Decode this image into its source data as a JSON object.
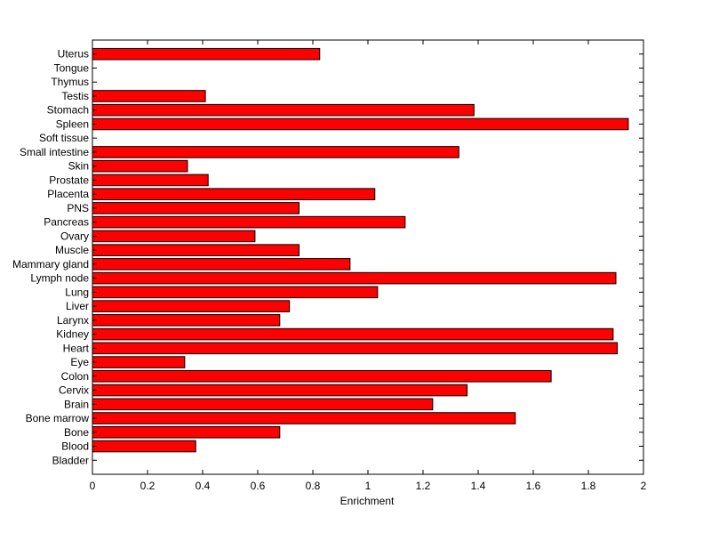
{
  "chart_data": {
    "type": "bar",
    "orientation": "horizontal",
    "title": "",
    "xlabel": "Enrichment",
    "ylabel": "",
    "xlim": [
      0,
      2
    ],
    "xticks": [
      "0",
      "0.2",
      "0.4",
      "0.6",
      "0.8",
      "1",
      "1.2",
      "1.4",
      "1.6",
      "1.8",
      "2"
    ],
    "grid": false,
    "bar_color": "#ff0000",
    "edge_color": "#000000",
    "categories": [
      "Bladder",
      "Blood",
      "Bone",
      "Bone marrow",
      "Brain",
      "Cervix",
      "Colon",
      "Eye",
      "Heart",
      "Kidney",
      "Larynx",
      "Liver",
      "Lung",
      "Lymph node",
      "Mammary gland",
      "Muscle",
      "Ovary",
      "Pancreas",
      "PNS",
      "Placenta",
      "Prostate",
      "Skin",
      "Small intestine",
      "Soft tissue",
      "Spleen",
      "Stomach",
      "Testis",
      "Thymus",
      "Tongue",
      "Uterus"
    ],
    "values": [
      0,
      0.375,
      0.68,
      1.535,
      1.235,
      1.36,
      1.665,
      0.335,
      1.905,
      1.89,
      0.68,
      0.715,
      1.035,
      1.9,
      0.935,
      0.75,
      0.59,
      1.135,
      0.75,
      1.025,
      0.42,
      0.345,
      1.33,
      0,
      1.945,
      1.385,
      0.41,
      0,
      0,
      0.825
    ]
  }
}
